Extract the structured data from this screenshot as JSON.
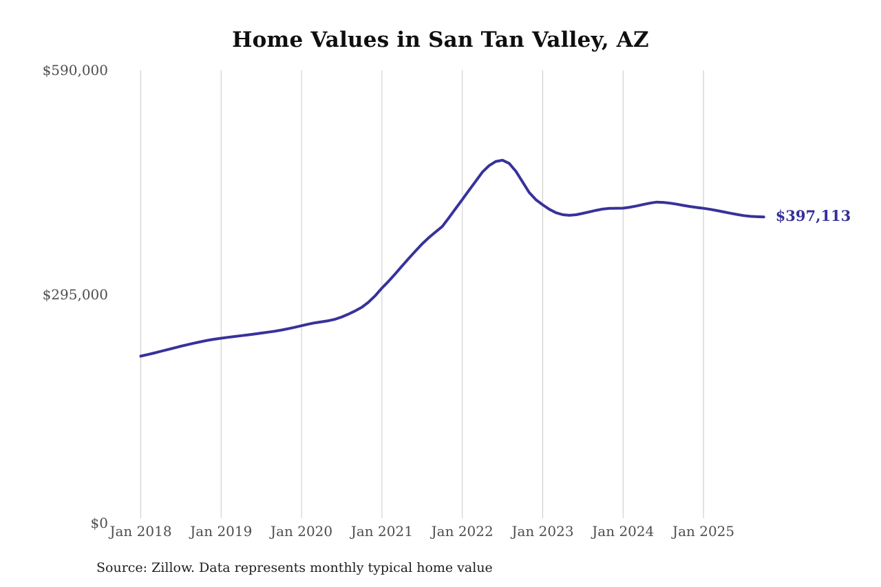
{
  "title": "Home Values in San Tan Valley, AZ",
  "source_note": "Source: Zillow. Data represents monthly typical home value",
  "latest_value_label": "$397,113",
  "colors": {
    "line": "#37329b",
    "grid": "#c9c9c9",
    "axis_text": "#4d4d4d",
    "title_text": "#0f0f0f",
    "annotation_text": "#332f9b",
    "background": "#ffffff"
  },
  "chart_data": {
    "type": "line",
    "title": "Home Values in San Tan Valley, AZ",
    "xlabel": "",
    "ylabel": "",
    "frequency": "monthly",
    "start_month": "2018-01",
    "end_month": "2025-10",
    "x_tick_labels": [
      "Jan 2018",
      "Jan 2019",
      "Jan 2020",
      "Jan 2021",
      "Jan 2022",
      "Jan 2023",
      "Jan 2024",
      "Jan 2025"
    ],
    "y_tick_labels": [
      "$0",
      "$295,000",
      "$590,000"
    ],
    "y_tick_values": [
      0,
      295000,
      590000
    ],
    "ylim": [
      0,
      590000
    ],
    "grid": "vertical-only",
    "legend": "none",
    "last_value": 397113,
    "last_value_label": "$397,113",
    "series": [
      {
        "name": "Typical home value",
        "values": [
          214000,
          216000,
          218100,
          220300,
          222500,
          224800,
          227000,
          229100,
          231100,
          233000,
          234800,
          236300,
          237500,
          238700,
          239800,
          240900,
          242000,
          243100,
          244300,
          245500,
          246800,
          248300,
          250000,
          251900,
          254000,
          256000,
          257800,
          259200,
          260500,
          262500,
          265500,
          269200,
          273500,
          278300,
          285000,
          293500,
          303500,
          312500,
          322300,
          332500,
          342400,
          352200,
          361500,
          369800,
          377300,
          384400,
          396000,
          408000,
          420000,
          432000,
          444000,
          456000,
          464500,
          470000,
          471600,
          467500,
          457000,
          443000,
          429000,
          419500,
          413000,
          407000,
          402500,
          400000,
          399200,
          400000,
          401800,
          403800,
          405800,
          407500,
          408300,
          408500,
          408600,
          409800,
          411500,
          413400,
          415200,
          416500,
          416200,
          415200,
          413800,
          412200,
          410700,
          409500,
          408400,
          407000,
          405400,
          403700,
          402000,
          400300,
          398800,
          397800,
          397300,
          397113
        ]
      }
    ]
  }
}
